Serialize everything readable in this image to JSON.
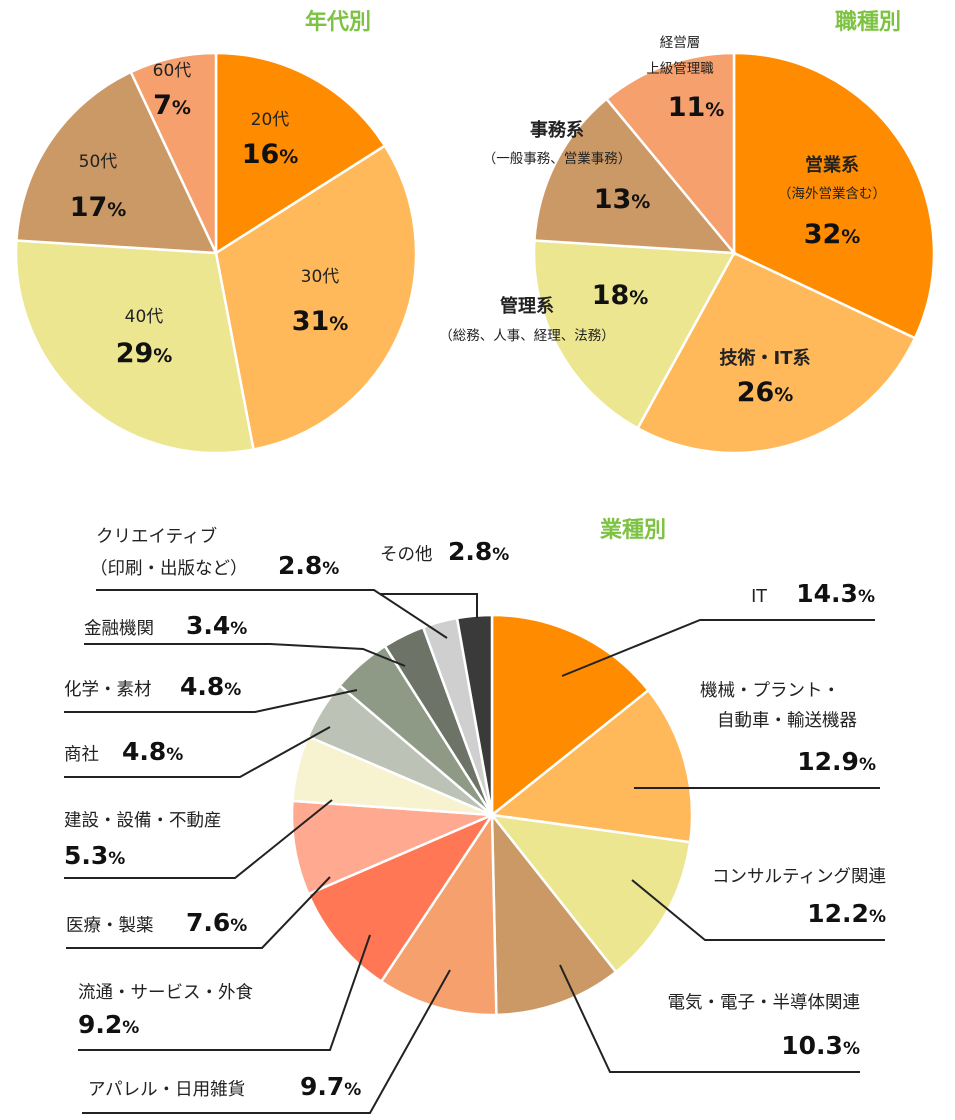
{
  "chart_data": [
    {
      "type": "pie",
      "title": "年代別",
      "slices": [
        {
          "name": "20代",
          "value": 16,
          "pct": "16",
          "color": "#ff8c00"
        },
        {
          "name": "30代",
          "value": 31,
          "pct": "31",
          "color": "#ffb95a"
        },
        {
          "name": "40代",
          "value": 29,
          "pct": "29",
          "color": "#ece690"
        },
        {
          "name": "50代",
          "value": 17,
          "pct": "17",
          "color": "#cb9966"
        },
        {
          "name": "60代",
          "value": 7,
          "pct": "7",
          "color": "#f6a06e"
        }
      ]
    },
    {
      "type": "pie",
      "title": "職種別",
      "slices": [
        {
          "name": "営業系",
          "sub": "（海外営業含む）",
          "value": 32,
          "pct": "32",
          "color": "#ff8c00"
        },
        {
          "name": "技術・IT系",
          "value": 26,
          "pct": "26",
          "color": "#ffb95a"
        },
        {
          "name": "管理系",
          "sub": "（総務、人事、経理、法務）",
          "value": 18,
          "pct": "18",
          "color": "#ece690"
        },
        {
          "name": "事務系",
          "sub": "（一般事務、営業事務）",
          "value": 13,
          "pct": "13",
          "color": "#cb9966"
        },
        {
          "name": "経営層",
          "name2": "上級管理職",
          "value": 11,
          "pct": "11",
          "color": "#f6a06e"
        }
      ]
    },
    {
      "type": "pie",
      "title": "業種別",
      "slices": [
        {
          "name": "IT",
          "value": 14.3,
          "pct": "14.3",
          "color": "#ff8c00"
        },
        {
          "name": "機械・プラント・",
          "name2": "自動車・輸送機器",
          "value": 12.9,
          "pct": "12.9",
          "color": "#ffb95a"
        },
        {
          "name": "コンサルティング関連",
          "value": 12.2,
          "pct": "12.2",
          "color": "#ece690"
        },
        {
          "name": "電気・電子・半導体関連",
          "value": 10.3,
          "pct": "10.3",
          "color": "#cb9966"
        },
        {
          "name": "アパレル・日用雑貨",
          "value": 9.7,
          "pct": "9.7",
          "color": "#f6a06e"
        },
        {
          "name": "流通・サービス・外食",
          "value": 9.2,
          "pct": "9.2",
          "color": "#ff7755"
        },
        {
          "name": "医療・製薬",
          "value": 7.6,
          "pct": "7.6",
          "color": "#ffaa90"
        },
        {
          "name": "建設・設備・不動産",
          "value": 5.3,
          "pct": "5.3",
          "color": "#f7f2d0"
        },
        {
          "name": "商社",
          "value": 4.8,
          "pct": "4.8",
          "color": "#bcc2b6"
        },
        {
          "name": "化学・素材",
          "value": 4.8,
          "pct": "4.8",
          "color": "#8e9a86"
        },
        {
          "name": "金融機関",
          "value": 3.4,
          "pct": "3.4",
          "color": "#6d7367"
        },
        {
          "name": "クリエイティブ",
          "name2": "（印刷・出版など）",
          "value": 2.8,
          "pct": "2.8",
          "color": "#cfcfcf"
        },
        {
          "name": "その他",
          "value": 2.8,
          "pct": "2.8",
          "color": "#3a3a3a"
        }
      ]
    }
  ],
  "pct_sign": "%"
}
